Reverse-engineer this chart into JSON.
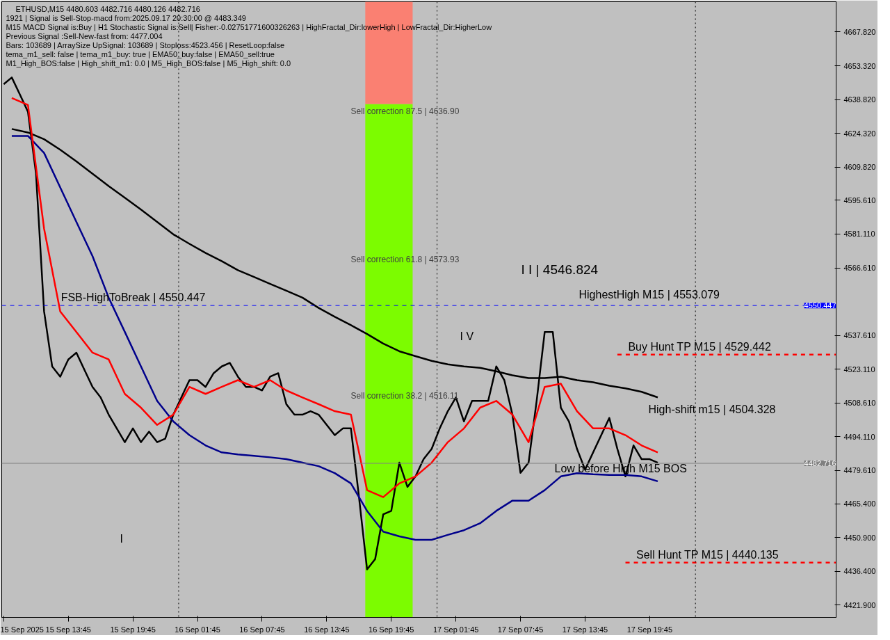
{
  "chart_data": {
    "type": "line",
    "title": "ETHUSD,M15  4480.603 4482.716 4480.126 4482.716",
    "x": [
      "2025-09-15T07:45",
      "2025-09-15T08:30",
      "2025-09-15T09:15",
      "2025-09-15T10:00",
      "2025-09-15T10:45",
      "2025-09-15T11:30",
      "2025-09-15T12:15",
      "2025-09-15T13:00",
      "2025-09-15T13:45",
      "2025-09-15T14:30",
      "2025-09-15T15:15",
      "2025-09-15T16:00",
      "2025-09-15T16:45",
      "2025-09-15T17:30",
      "2025-09-15T18:15",
      "2025-09-15T19:00",
      "2025-09-15T19:45",
      "2025-09-15T20:30",
      "2025-09-15T21:15",
      "2025-09-15T22:00",
      "2025-09-15T22:45",
      "2025-09-15T23:30",
      "2025-09-16T00:15",
      "2025-09-16T01:00",
      "2025-09-16T01:45",
      "2025-09-16T02:30",
      "2025-09-16T03:15",
      "2025-09-16T04:00",
      "2025-09-16T04:45",
      "2025-09-16T05:30",
      "2025-09-16T06:15",
      "2025-09-16T07:00",
      "2025-09-16T07:45",
      "2025-09-16T08:30",
      "2025-09-16T09:15",
      "2025-09-16T10:00",
      "2025-09-16T10:45",
      "2025-09-16T11:30",
      "2025-09-16T12:15",
      "2025-09-16T13:00",
      "2025-09-16T13:45",
      "2025-09-16T14:30",
      "2025-09-16T15:15",
      "2025-09-16T16:00",
      "2025-09-16T16:45",
      "2025-09-16T17:30",
      "2025-09-16T18:15",
      "2025-09-16T19:00",
      "2025-09-16T19:45",
      "2025-09-16T20:30",
      "2025-09-16T21:15",
      "2025-09-16T22:00",
      "2025-09-16T22:45",
      "2025-09-16T23:30",
      "2025-09-17T00:15",
      "2025-09-17T01:00",
      "2025-09-17T01:45",
      "2025-09-17T02:30",
      "2025-09-17T03:15",
      "2025-09-17T04:00",
      "2025-09-17T04:45",
      "2025-09-17T05:30",
      "2025-09-17T06:15",
      "2025-09-17T07:00",
      "2025-09-17T07:45",
      "2025-09-17T08:30",
      "2025-09-17T09:15",
      "2025-09-17T10:00",
      "2025-09-17T10:45",
      "2025-09-17T11:30",
      "2025-09-17T12:15",
      "2025-09-17T13:00",
      "2025-09-17T13:45",
      "2025-09-17T14:30",
      "2025-09-17T15:15",
      "2025-09-17T16:00",
      "2025-09-17T16:45",
      "2025-09-17T17:30",
      "2025-09-17T18:15",
      "2025-09-17T19:00",
      "2025-09-17T19:45",
      "2025-09-17T20:30"
    ],
    "series": [
      {
        "type": "bar",
        "color": "#7cfc00",
        "x": [
          "2025-09-16T19:32"
        ],
        "base": [
          4416.6
        ],
        "values": [
          220.3
        ]
      },
      {
        "type": "bar",
        "color": "#fa8072",
        "x": [
          "2025-09-16T19:32"
        ],
        "base": [
          4636.9
        ],
        "values": [
          43.9
        ]
      },
      {
        "color": "#000000",
        "values": [
          4645.4,
          4648.3,
          4641.0,
          4633.6,
          4607.0,
          4547.9,
          4524.3,
          4519.9,
          4527.3,
          4530.2,
          4522.8,
          4515.5,
          4511.0,
          4503.6,
          4497.7,
          4491.8,
          4497.7,
          4491.8,
          4496.3,
          4491.8,
          4493.3,
          4503.6,
          4511.0,
          4518.4,
          4518.4,
          4515.5,
          4521.4,
          4524.3,
          4525.8,
          4519.9,
          4515.5,
          4515.5,
          4514.0,
          4519.9,
          4521.4,
          4508.1,
          4503.6,
          4503.6,
          4505.1,
          4503.6,
          4499.2,
          4494.8,
          4497.7,
          4497.7,
          4468.2,
          4437.2,
          4441.6,
          4460.8,
          4462.3,
          4483.0,
          4472.6,
          4477.1,
          4484.5,
          4488.9,
          4497.7,
          4505.1,
          4511.0,
          4500.7,
          4509.5,
          4509.5,
          4509.5,
          4524.3,
          4518.4,
          4503.6,
          4478.6,
          4483.0,
          4509.5,
          4539.1,
          4539.1,
          4506.6,
          4500.7,
          4488.9,
          4480.0,
          4487.4,
          4494.8,
          4502.2,
          4488.9,
          4477.1,
          4490.4,
          4484.5,
          4484.5,
          4483.0
        ]
      },
      {
        "color": "#000000",
        "x": [
          "2025-09-15T08:30",
          "2025-09-15T10:00",
          "2025-09-15T11:30",
          "2025-09-15T13:00",
          "2025-09-15T14:30",
          "2025-09-15T16:00",
          "2025-09-15T17:30",
          "2025-09-15T19:00",
          "2025-09-15T20:30",
          "2025-09-15T22:00",
          "2025-09-15T23:30",
          "2025-09-16T01:00",
          "2025-09-16T02:30",
          "2025-09-16T04:00",
          "2025-09-16T05:30",
          "2025-09-16T07:00",
          "2025-09-16T08:30",
          "2025-09-16T10:00",
          "2025-09-16T11:30",
          "2025-09-16T13:00",
          "2025-09-16T14:30",
          "2025-09-16T16:00",
          "2025-09-16T17:30",
          "2025-09-16T19:00",
          "2025-09-16T20:30",
          "2025-09-16T22:00",
          "2025-09-16T23:30",
          "2025-09-17T01:00",
          "2025-09-17T02:30",
          "2025-09-17T04:00",
          "2025-09-17T05:30",
          "2025-09-17T07:00",
          "2025-09-17T08:30",
          "2025-09-17T10:00",
          "2025-09-17T11:30",
          "2025-09-17T13:00",
          "2025-09-17T14:30",
          "2025-09-17T16:00",
          "2025-09-17T17:30",
          "2025-09-17T19:00",
          "2025-09-17T20:30"
        ],
        "values": [
          4626.2,
          4624.7,
          4621.8,
          4617.3,
          4612.3,
          4607.0,
          4601.7,
          4596.7,
          4591.6,
          4586.3,
          4581.0,
          4576.9,
          4573.0,
          4569.5,
          4565.6,
          4562.7,
          4559.7,
          4556.8,
          4553.8,
          4549.4,
          4545.6,
          4542.0,
          4538.2,
          4534.1,
          4530.8,
          4528.7,
          4526.7,
          4525.2,
          4524.3,
          4523.7,
          4522.2,
          4520.5,
          4519.3,
          4519.3,
          4519.9,
          4518.4,
          4517.5,
          4516.0,
          4514.9,
          4513.4,
          4511.0
        ]
      },
      {
        "color": "#00008b",
        "x": [
          "2025-09-15T08:30",
          "2025-09-15T10:00",
          "2025-09-15T11:30",
          "2025-09-15T13:00",
          "2025-09-15T14:30",
          "2025-09-15T16:00",
          "2025-09-15T17:30",
          "2025-09-15T19:00",
          "2025-09-15T20:30",
          "2025-09-15T22:00",
          "2025-09-15T23:30",
          "2025-09-16T01:00",
          "2025-09-16T02:30",
          "2025-09-16T04:00",
          "2025-09-16T05:30",
          "2025-09-16T07:00",
          "2025-09-16T08:30",
          "2025-09-16T10:00",
          "2025-09-16T11:30",
          "2025-09-16T13:00",
          "2025-09-16T14:30",
          "2025-09-16T16:00",
          "2025-09-16T17:30",
          "2025-09-16T19:00",
          "2025-09-16T20:30",
          "2025-09-16T22:00",
          "2025-09-16T23:30",
          "2025-09-17T01:00",
          "2025-09-17T02:30",
          "2025-09-17T04:00",
          "2025-09-17T05:30",
          "2025-09-17T07:00",
          "2025-09-17T08:30",
          "2025-09-17T10:00",
          "2025-09-17T11:30",
          "2025-09-17T13:00",
          "2025-09-17T14:30",
          "2025-09-17T16:00",
          "2025-09-17T17:30",
          "2025-09-17T19:00",
          "2025-09-17T20:30"
        ],
        "values": [
          4623.2,
          4623.2,
          4615.9,
          4601.1,
          4586.3,
          4571.6,
          4553.8,
          4539.1,
          4524.3,
          4509.5,
          4500.7,
          4494.8,
          4490.4,
          4487.4,
          4486.5,
          4485.9,
          4485.3,
          4484.5,
          4483.0,
          4481.5,
          4478.5,
          4474.1,
          4462.3,
          4453.4,
          4451.4,
          4449.9,
          4449.9,
          4452.0,
          4454.0,
          4457.0,
          4462.3,
          4466.7,
          4466.7,
          4471.2,
          4477.1,
          4478.5,
          4478.0,
          4477.7,
          4477.7,
          4477.1,
          4475.0
        ]
      },
      {
        "color": "#ff0000",
        "x": [
          "2025-09-15T08:30",
          "2025-09-15T10:00",
          "2025-09-15T11:30",
          "2025-09-15T13:00",
          "2025-09-15T14:30",
          "2025-09-15T16:00",
          "2025-09-15T17:30",
          "2025-09-15T19:00",
          "2025-09-15T20:30",
          "2025-09-15T22:00",
          "2025-09-15T23:30",
          "2025-09-16T01:00",
          "2025-09-16T02:30",
          "2025-09-16T04:00",
          "2025-09-16T05:30",
          "2025-09-16T07:00",
          "2025-09-16T08:30",
          "2025-09-16T10:00",
          "2025-09-16T11:30",
          "2025-09-16T13:00",
          "2025-09-16T14:30",
          "2025-09-16T16:00",
          "2025-09-16T17:30",
          "2025-09-16T19:00",
          "2025-09-16T20:30",
          "2025-09-16T22:00",
          "2025-09-16T23:30",
          "2025-09-17T01:00",
          "2025-09-17T02:30",
          "2025-09-17T04:00",
          "2025-09-17T05:30",
          "2025-09-17T07:00",
          "2025-09-17T08:30",
          "2025-09-17T10:00",
          "2025-09-17T11:30",
          "2025-09-17T13:00",
          "2025-09-17T14:30",
          "2025-09-17T16:00",
          "2025-09-17T17:30",
          "2025-09-17T19:00",
          "2025-09-17T20:30"
        ],
        "values": [
          4639.5,
          4636.5,
          4583.4,
          4547.9,
          4539.1,
          4530.2,
          4527.3,
          4512.5,
          4506.6,
          4499.2,
          4503.6,
          4515.5,
          4512.5,
          4515.5,
          4518.4,
          4515.5,
          4518.4,
          4514.0,
          4511.0,
          4508.1,
          4505.1,
          4503.6,
          4471.2,
          4468.2,
          4474.1,
          4477.1,
          4483.0,
          4491.8,
          4497.7,
          4506.6,
          4509.5,
          4503.6,
          4491.8,
          4515.5,
          4516.9,
          4505.1,
          4497.7,
          4497.7,
          4494.8,
          4490.4,
          4487.4
        ]
      },
      {
        "color": "#ff0000",
        "line_style": "dashed",
        "x": [
          "2025-09-17T16:45",
          "2025-09-18T13:04"
        ],
        "values": [
          4529.4,
          4529.4
        ]
      },
      {
        "color": "#ff0000",
        "line_style": "dashed",
        "x": [
          "2025-09-17T17:30",
          "2025-09-18T13:04"
        ],
        "values": [
          4440.1,
          4440.1
        ]
      }
    ],
    "xlim": [
      "2025-09-15T07:34",
      "2025-09-18T13:04"
    ],
    "xticks": [
      {
        "value": "2025-09-15T07:45",
        "label": "15 Sep 2025"
      },
      {
        "value": "2025-09-15T13:45",
        "label": "15 Sep 13:45"
      },
      {
        "value": "2025-09-15T19:45",
        "label": "15 Sep 19:45"
      },
      {
        "value": "2025-09-16T01:45",
        "label": "16 Sep 01:45"
      },
      {
        "value": "2025-09-16T07:45",
        "label": "16 Sep 07:45"
      },
      {
        "value": "2025-09-16T13:45",
        "label": "16 Sep 13:45"
      },
      {
        "value": "2025-09-16T19:45",
        "label": "16 Sep 19:45"
      },
      {
        "value": "2025-09-17T01:45",
        "label": "17 Sep 01:45"
      },
      {
        "value": "2025-09-17T07:45",
        "label": "17 Sep 07:45"
      },
      {
        "value": "2025-09-17T13:45",
        "label": "17 Sep 13:45"
      },
      {
        "value": "2025-09-17T19:45",
        "label": "17 Sep 19:45"
      }
    ],
    "ylim": [
      4416.6,
      4680.8
    ],
    "yticks": [
      {
        "value": 4421.9,
        "label": "4421.900"
      },
      {
        "value": 4436.4,
        "label": "4436.400"
      },
      {
        "value": 4450.9,
        "label": "4450.900"
      },
      {
        "value": 4465.4,
        "label": "4465.400"
      },
      {
        "value": 4479.61,
        "label": "4479.610"
      },
      {
        "value": 4494.11,
        "label": "4494.110"
      },
      {
        "value": 4508.61,
        "label": "4508.610"
      },
      {
        "value": 4523.11,
        "label": "4523.110"
      },
      {
        "value": 4537.61,
        "label": "4537.610"
      },
      {
        "value": 4566.61,
        "label": "4566.610"
      },
      {
        "value": 4581.11,
        "label": "4581.110"
      },
      {
        "value": 4595.61,
        "label": "4595.610"
      },
      {
        "value": 4609.82,
        "label": "4609.820"
      },
      {
        "value": 4624.32,
        "label": "4624.320"
      },
      {
        "value": 4638.82,
        "label": "4638.820"
      },
      {
        "value": 4653.32,
        "label": "4653.320"
      },
      {
        "value": 4667.82,
        "label": "4667.820"
      }
    ],
    "grid": false,
    "ref_lines": [
      {
        "axis": "x",
        "value": "2025-09-16T00:00",
        "color": "#000000",
        "line_style": "dotted"
      },
      {
        "axis": "x",
        "value": "2025-09-17T00:00",
        "color": "#000000",
        "line_style": "dotted"
      },
      {
        "axis": "x",
        "value": "2025-09-18T00:00",
        "color": "#000000",
        "line_style": "dotted"
      },
      {
        "axis": "y",
        "value": 4550.447,
        "label": "4550.447",
        "color": "#0000ff",
        "line_style": "dashed"
      },
      {
        "axis": "y",
        "value": 4482.716,
        "label": "4482.716",
        "color": "#808080",
        "line_style": "solid"
      }
    ],
    "annotations": [
      "1921 | Signal is Sell-Stop-macd from:2025.09.17 20:30:00 @ 4483.349",
      "M15 MACD Signal is:Buy | H1 Stochastic Signal is:Sell| Fisher:-0.02751771600326263 | HighFractal_Dir:lowerHigh | LowFractal_Dir:HigherLow",
      "Previous Signal :Sell-New-fast from: 4477.004",
      "Bars: 103689 | ArraySize UpSignal: 103689 | Stoploss:4523.456 | ResetLoop:false",
      "tema_m1_sell: false | tema_m1_buy: true | EMA50_buy:false | EMA50_sell:true",
      "M1_High_BOS:false | High_shift_m1: 0.0 | M5_High_BOS:false | M5_High_shift: 0.0",
      "Sell correction 87.5 | 4636.90",
      "Sell correction 61.8 | 4573.93",
      "Sell correction 38.2 | 4516.11",
      "I I | 4546.824",
      "I V",
      "I",
      "HighestHigh    M15 | 4553.079",
      "High-shift m15 | 4504.328",
      "Low before High   M15 BOS",
      {
        "text": "FSB-HighToBreak | 4550.447",
        "x": "2025-09-15T13:04",
        "y": 4550.447
      },
      {
        "text": "Buy Hunt TP M15 | 4529.442",
        "x": "2025-09-17T17:45",
        "y": 4529.4
      },
      {
        "text": "Sell Hunt TP M15 | 4440.135",
        "x": "2025-09-17T18:30",
        "y": 4440.1
      }
    ]
  }
}
